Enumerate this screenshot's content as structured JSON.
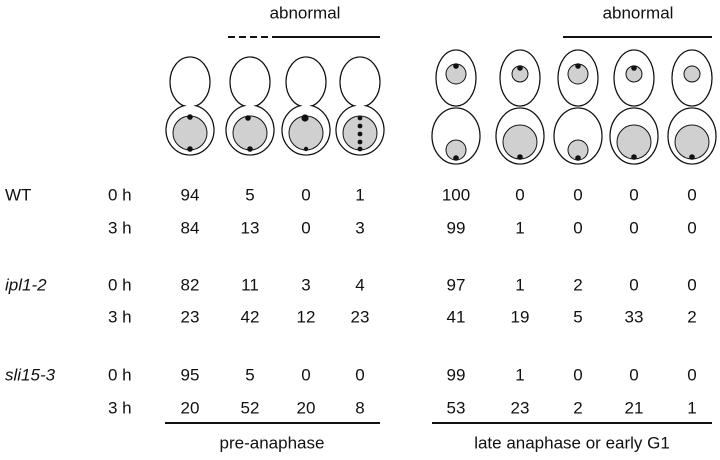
{
  "header": {
    "abnormal_pre": "abnormal",
    "abnormal_late": "abnormal"
  },
  "strains": [
    {
      "name": "WT",
      "rows": [
        {
          "time": "0 h",
          "values": [
            94,
            5,
            0,
            1,
            100,
            0,
            0,
            0,
            0
          ]
        },
        {
          "time": "3 h",
          "values": [
            84,
            13,
            0,
            3,
            99,
            1,
            0,
            0,
            0
          ]
        }
      ]
    },
    {
      "name": "ipl1-2",
      "rows": [
        {
          "time": "0 h",
          "values": [
            82,
            11,
            3,
            4,
            97,
            1,
            2,
            0,
            0
          ]
        },
        {
          "time": "3 h",
          "values": [
            23,
            42,
            12,
            23,
            41,
            19,
            5,
            33,
            2
          ]
        }
      ]
    },
    {
      "name": "sli15-3",
      "rows": [
        {
          "time": "0 h",
          "values": [
            95,
            5,
            0,
            0,
            99,
            1,
            0,
            0,
            0
          ]
        },
        {
          "time": "3 h",
          "values": [
            20,
            52,
            20,
            8,
            53,
            23,
            2,
            21,
            1
          ]
        }
      ]
    }
  ],
  "footer": {
    "pre": "pre-anaphase",
    "late": "late anaphase or early G1"
  }
}
